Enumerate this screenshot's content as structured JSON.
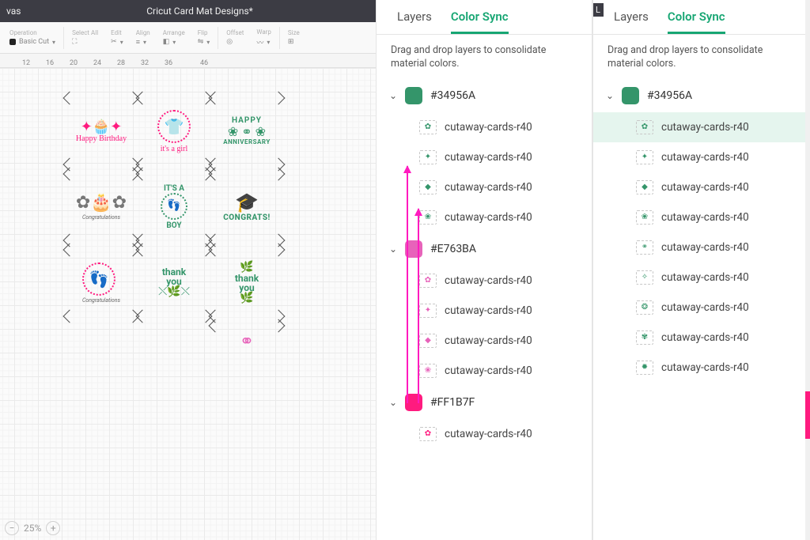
{
  "header": {
    "left_label": "vas",
    "title": "Cricut Card Mat Designs*"
  },
  "toolbar": {
    "operation_label": "Operation",
    "operation_value": "Basic Cut",
    "select_all": "Select All",
    "edit": "Edit",
    "align": "Align",
    "arrange": "Arrange",
    "flip": "Flip",
    "offset": "Offset",
    "warp": "Warp",
    "size": "Size"
  },
  "ruler": [
    "12",
    "16",
    "20",
    "24",
    "28",
    "32",
    "36",
    "46"
  ],
  "zoom": {
    "value": "25%"
  },
  "cards": {
    "r1c1": {
      "line1": "Happy",
      "line2": "Birthday"
    },
    "r1c2": {
      "line1": "it's a",
      "line2": "girl"
    },
    "r1c3": {
      "line1": "HAPPY",
      "line2": "ANNIVERSARY"
    },
    "r2c1": {
      "sub": "Congratulations"
    },
    "r2c2": {
      "line1": "IT'S A",
      "line2": "BOY"
    },
    "r2c3": {
      "line1": "CONGRATS!"
    },
    "r3c1": {
      "sub": "Congratulations"
    },
    "r3c2": {
      "line1": "thank",
      "line2": "you"
    },
    "r3c3": {
      "line1": "thank",
      "line2": "you"
    },
    "r4c3": {}
  },
  "panel": {
    "tab_layers": "Layers",
    "tab_colorsync": "Color Sync",
    "hint": "Drag and drop layers to consolidate material colors.",
    "layer_label": "cutaway-cards-r40"
  },
  "colors": {
    "green": {
      "hex": "#34956A",
      "label": "#34956A"
    },
    "pink": {
      "hex": "#E763BA",
      "label": "#E763BA"
    },
    "hotpink": {
      "hex": "#FF1B7F",
      "label": "#FF1B7F"
    },
    "active_tab": "#17a673",
    "arrow": "#ff1bbf"
  },
  "panel1_groups": [
    {
      "color": "green",
      "count": 4
    },
    {
      "color": "pink",
      "count": 4
    },
    {
      "color": "hotpink",
      "count": 1
    }
  ],
  "panel2_groups": [
    {
      "color": "green",
      "count": 9,
      "highlight_index": 0
    }
  ],
  "letter_nub": "L"
}
